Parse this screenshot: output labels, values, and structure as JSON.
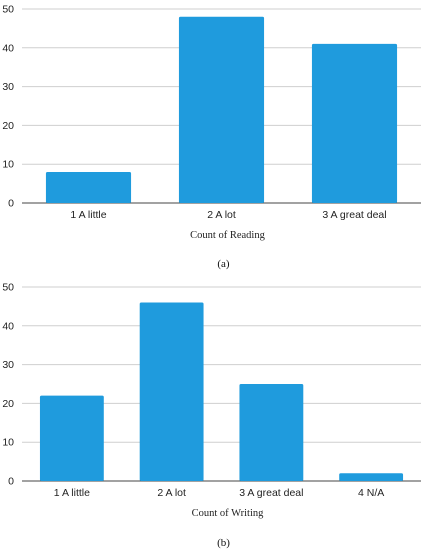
{
  "chart_data": [
    {
      "type": "bar",
      "categories": [
        "1 A little",
        "2 A lot",
        "3 A great deal"
      ],
      "values": [
        8,
        48,
        41
      ],
      "xlabel": "Count of Reading",
      "ylabel": "",
      "ylim": [
        0,
        50
      ],
      "yticks": [
        0,
        10,
        20,
        30,
        40,
        50
      ],
      "grid": true,
      "caption": "(a)",
      "bar_color": "#1f9bdd"
    },
    {
      "type": "bar",
      "categories": [
        "1 A little",
        "2 A lot",
        "3 A great deal",
        "4 N/A"
      ],
      "values": [
        22,
        46,
        25,
        2
      ],
      "xlabel": "Count of Writing",
      "ylabel": "",
      "ylim": [
        0,
        50
      ],
      "yticks": [
        0,
        10,
        20,
        30,
        40,
        50
      ],
      "grid": true,
      "caption": "(b)",
      "bar_color": "#1f9bdd"
    }
  ]
}
